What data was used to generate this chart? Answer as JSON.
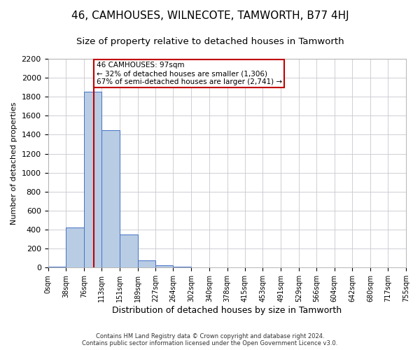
{
  "title": "46, CAMHOUSES, WILNECOTE, TAMWORTH, B77 4HJ",
  "subtitle": "Size of property relative to detached houses in Tamworth",
  "xlabel": "Distribution of detached houses by size in Tamworth",
  "ylabel": "Number of detached properties",
  "footer_line1": "Contains HM Land Registry data © Crown copyright and database right 2024.",
  "footer_line2": "Contains public sector information licensed under the Open Government Licence v3.0.",
  "bar_edges": [
    0,
    38,
    76,
    113,
    151,
    189,
    227,
    264,
    302,
    340,
    378,
    415,
    453,
    491,
    529,
    566,
    604,
    642,
    680,
    717,
    755
  ],
  "bar_heights": [
    10,
    420,
    1850,
    1450,
    350,
    75,
    25,
    10,
    0,
    0,
    0,
    0,
    0,
    0,
    0,
    0,
    0,
    0,
    0,
    0
  ],
  "bar_color": "#b8cce4",
  "bar_edge_color": "#4472c4",
  "property_size": 97,
  "vline_color": "#c00000",
  "annotation_text": "46 CAMHOUSES: 97sqm\n← 32% of detached houses are smaller (1,306)\n67% of semi-detached houses are larger (2,741) →",
  "annotation_box_color": "#ffffff",
  "annotation_box_edge": "#c00000",
  "ylim": [
    0,
    2200
  ],
  "yticks": [
    0,
    200,
    400,
    600,
    800,
    1000,
    1200,
    1400,
    1600,
    1800,
    2000,
    2200
  ],
  "grid_color": "#c8c8d0",
  "title_fontsize": 11,
  "subtitle_fontsize": 9.5,
  "tick_label_fontsize": 7,
  "ylabel_fontsize": 8,
  "xlabel_fontsize": 9,
  "footer_fontsize": 6,
  "annotation_fontsize": 7.5,
  "background_color": "#ffffff"
}
